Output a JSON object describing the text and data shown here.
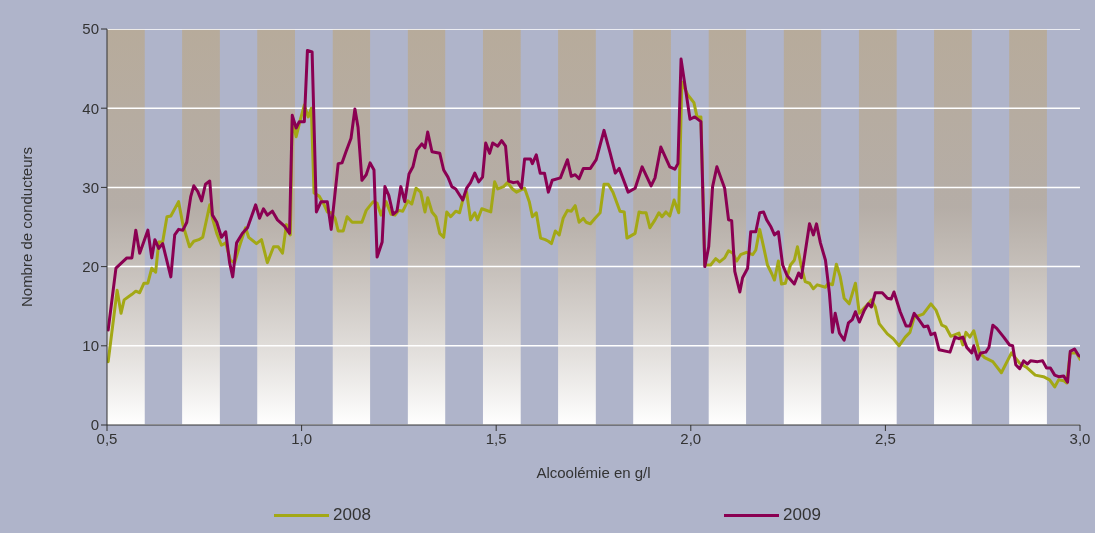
{
  "chart_data": {
    "type": "line",
    "xlabel": "Alcoolémie en g/l",
    "ylabel": "Nombre de  conducteurs",
    "xlim": [
      0.5,
      3.0
    ],
    "xticks": [
      {
        "value": 0.5,
        "label": "0,5"
      },
      {
        "value": 1.0,
        "label": "1,0"
      },
      {
        "value": 1.5,
        "label": "1,5"
      },
      {
        "value": 2.0,
        "label": "2,0"
      },
      {
        "value": 2.5,
        "label": "2,5"
      },
      {
        "value": 3.0,
        "label": "3,0"
      }
    ],
    "ylim": [
      0,
      50
    ],
    "yticks": [
      0,
      10,
      20,
      30,
      40,
      50
    ],
    "grid": "y",
    "legend": "bottom",
    "marker": "none",
    "line_style": "solid",
    "bands": [
      {
        "axis": "x",
        "from": 0.5,
        "to": 0.597,
        "color": "#b7ab9b"
      },
      {
        "axis": "x",
        "from": 0.693,
        "to": 0.79,
        "color": "#b7ab9b"
      },
      {
        "axis": "x",
        "from": 0.886,
        "to": 0.983,
        "color": "#b7ab9b"
      },
      {
        "axis": "x",
        "from": 1.08,
        "to": 1.176,
        "color": "#b7ab9b"
      },
      {
        "axis": "x",
        "from": 1.273,
        "to": 1.369,
        "color": "#b7ab9b"
      },
      {
        "axis": "x",
        "from": 1.466,
        "to": 1.563,
        "color": "#b7ab9b"
      },
      {
        "axis": "x",
        "from": 1.659,
        "to": 1.756,
        "color": "#b7ab9b"
      },
      {
        "axis": "x",
        "from": 1.852,
        "to": 1.949,
        "color": "#b7ab9b"
      },
      {
        "axis": "x",
        "from": 2.046,
        "to": 2.142,
        "color": "#b7ab9b"
      },
      {
        "axis": "x",
        "from": 2.239,
        "to": 2.335,
        "color": "#b7ab9b"
      },
      {
        "axis": "x",
        "from": 2.432,
        "to": 2.529,
        "color": "#b7ab9b"
      },
      {
        "axis": "x",
        "from": 2.625,
        "to": 2.722,
        "color": "#b7ab9b"
      },
      {
        "axis": "x",
        "from": 2.818,
        "to": 2.915,
        "color": "#b7ab9b"
      }
    ],
    "series": [
      {
        "name": "2008",
        "color": "#a3a815",
        "x": [
          0.503,
          0.526,
          0.536,
          0.544,
          0.564,
          0.574,
          0.584,
          0.595,
          0.605,
          0.615,
          0.625,
          0.633,
          0.643,
          0.654,
          0.664,
          0.684,
          0.695,
          0.712,
          0.723,
          0.736,
          0.746,
          0.764,
          0.771,
          0.782,
          0.794,
          0.805,
          0.817,
          0.828,
          0.84,
          0.856,
          0.864,
          0.884,
          0.897,
          0.912,
          0.928,
          0.94,
          0.951,
          0.961,
          0.971,
          0.976,
          0.986,
          0.997,
          1.007,
          1.017,
          1.025,
          1.032,
          1.045,
          1.058,
          1.066,
          1.076,
          1.086,
          1.094,
          1.107,
          1.117,
          1.13,
          1.14,
          1.155,
          1.166,
          1.184,
          1.194,
          1.204,
          1.217,
          1.23,
          1.24,
          1.25,
          1.26,
          1.273,
          1.283,
          1.294,
          1.306,
          1.317,
          1.324,
          1.335,
          1.345,
          1.355,
          1.365,
          1.373,
          1.383,
          1.396,
          1.406,
          1.414,
          1.424,
          1.434,
          1.445,
          1.452,
          1.463,
          1.486,
          1.496,
          1.504,
          1.519,
          1.529,
          1.542,
          1.552,
          1.573,
          1.585,
          1.593,
          1.603,
          1.614,
          1.626,
          1.634,
          1.642,
          1.652,
          1.662,
          1.672,
          1.683,
          1.693,
          1.703,
          1.713,
          1.724,
          1.731,
          1.742,
          1.754,
          1.767,
          1.777,
          1.788,
          1.8,
          1.818,
          1.829,
          1.836,
          1.857,
          1.867,
          1.875,
          1.885,
          1.895,
          1.908,
          1.918,
          1.926,
          1.936,
          1.946,
          1.957,
          1.969,
          1.977,
          1.992,
          2.008,
          2.016,
          2.026,
          2.036,
          2.051,
          2.064,
          2.074,
          2.087,
          2.097,
          2.108,
          2.118,
          2.128,
          2.143,
          2.159,
          2.167,
          2.177,
          2.187,
          2.197,
          2.208,
          2.215,
          2.225,
          2.233,
          2.243,
          2.256,
          2.266,
          2.274,
          2.284,
          2.294,
          2.305,
          2.315,
          2.325,
          2.346,
          2.353,
          2.364,
          2.374,
          2.384,
          2.394,
          2.407,
          2.423,
          2.433,
          2.446,
          2.456,
          2.464,
          2.474,
          2.484,
          2.505,
          2.52,
          2.535,
          2.551,
          2.563,
          2.574,
          2.597,
          2.617,
          2.63,
          2.645,
          2.655,
          2.668,
          2.689,
          2.699,
          2.707,
          2.717,
          2.727,
          2.742,
          2.755,
          2.776,
          2.798,
          2.824,
          2.845,
          2.862,
          2.885,
          2.906,
          2.922,
          2.935,
          2.945,
          2.958,
          2.966,
          2.975,
          2.991,
          3.0
        ],
        "values": [
          8.0,
          17.0,
          14.1,
          15.8,
          16.5,
          16.9,
          16.7,
          17.9,
          17.9,
          19.8,
          19.3,
          23.1,
          23.1,
          26.3,
          26.4,
          28.2,
          25.3,
          22.5,
          23.2,
          23.4,
          23.7,
          27.8,
          26.1,
          24.2,
          22.7,
          23.0,
          20.8,
          20.5,
          22.5,
          24.9,
          23.7,
          22.9,
          23.4,
          20.5,
          22.5,
          22.5,
          21.7,
          25.3,
          24.0,
          38.5,
          36.4,
          38.6,
          40.4,
          38.9,
          40.0,
          29.3,
          28.9,
          27.8,
          26.9,
          26.8,
          26.1,
          24.5,
          24.5,
          26.3,
          25.6,
          25.6,
          25.6,
          27.1,
          28.2,
          28.0,
          26.5,
          28.2,
          26.6,
          26.5,
          27.1,
          27.0,
          28.3,
          27.9,
          29.9,
          29.4,
          26.9,
          28.7,
          26.9,
          26.3,
          24.2,
          23.7,
          26.9,
          26.3,
          27.0,
          26.8,
          28.4,
          29.4,
          25.9,
          26.8,
          25.9,
          27.3,
          26.9,
          30.7,
          29.8,
          30.1,
          30.6,
          29.8,
          29.4,
          29.9,
          28.2,
          26.3,
          26.8,
          23.6,
          23.4,
          23.2,
          22.9,
          24.5,
          24.0,
          26.1,
          27.1,
          27.0,
          27.7,
          25.6,
          26.1,
          25.6,
          25.4,
          26.1,
          26.8,
          30.4,
          30.4,
          29.4,
          27.0,
          26.9,
          23.6,
          24.2,
          26.9,
          26.8,
          26.8,
          24.9,
          25.9,
          26.8,
          26.3,
          26.9,
          26.4,
          28.4,
          26.8,
          43.3,
          41.7,
          40.7,
          38.9,
          38.9,
          20.2,
          20.2,
          21.0,
          20.6,
          21.1,
          22.0,
          21.7,
          20.7,
          21.5,
          21.8,
          21.5,
          22.1,
          24.7,
          22.5,
          20.2,
          19.1,
          18.3,
          20.7,
          17.8,
          17.9,
          20.2,
          20.8,
          22.5,
          20.0,
          18.1,
          17.9,
          17.2,
          17.7,
          17.4,
          17.9,
          17.7,
          20.3,
          18.7,
          16.0,
          15.3,
          17.9,
          14.1,
          14.8,
          15.3,
          15.8,
          14.9,
          12.8,
          11.5,
          10.9,
          10.0,
          11.1,
          11.7,
          13.6,
          14.0,
          15.3,
          14.5,
          12.6,
          12.4,
          11.2,
          11.6,
          10.1,
          11.7,
          11.1,
          11.9,
          9.1,
          8.5,
          8.0,
          6.6,
          9.1,
          7.8,
          7.3,
          6.3,
          6.1,
          5.7,
          4.8,
          5.7,
          5.6,
          5.3,
          9.1,
          9.1,
          8.3
        ]
      },
      {
        "name": "2009",
        "color": "#8a0052",
        "x": [
          0.503,
          0.523,
          0.551,
          0.564,
          0.574,
          0.584,
          0.605,
          0.615,
          0.623,
          0.633,
          0.643,
          0.664,
          0.674,
          0.684,
          0.695,
          0.705,
          0.715,
          0.723,
          0.733,
          0.743,
          0.753,
          0.764,
          0.771,
          0.782,
          0.794,
          0.805,
          0.815,
          0.823,
          0.833,
          0.848,
          0.861,
          0.882,
          0.892,
          0.902,
          0.912,
          0.925,
          0.938,
          0.956,
          0.969,
          0.976,
          0.986,
          0.994,
          1.007,
          1.015,
          1.027,
          1.038,
          1.05,
          1.066,
          1.076,
          1.094,
          1.104,
          1.114,
          1.127,
          1.137,
          1.145,
          1.155,
          1.166,
          1.176,
          1.186,
          1.194,
          1.207,
          1.214,
          1.224,
          1.235,
          1.245,
          1.255,
          1.265,
          1.276,
          1.286,
          1.296,
          1.309,
          1.317,
          1.324,
          1.335,
          1.355,
          1.365,
          1.376,
          1.386,
          1.396,
          1.414,
          1.424,
          1.434,
          1.445,
          1.455,
          1.465,
          1.473,
          1.483,
          1.491,
          1.504,
          1.514,
          1.524,
          1.532,
          1.544,
          1.555,
          1.565,
          1.573,
          1.588,
          1.593,
          1.603,
          1.613,
          1.624,
          1.634,
          1.644,
          1.665,
          1.683,
          1.693,
          1.703,
          1.713,
          1.724,
          1.742,
          1.757,
          1.777,
          1.793,
          1.806,
          1.816,
          1.839,
          1.857,
          1.875,
          1.898,
          1.908,
          1.923,
          1.946,
          1.959,
          1.967,
          1.975,
          1.998,
          2.01,
          2.026,
          2.036,
          2.046,
          2.056,
          2.067,
          2.087,
          2.097,
          2.105,
          2.113,
          2.126,
          2.133,
          2.146,
          2.154,
          2.167,
          2.177,
          2.187,
          2.195,
          2.205,
          2.215,
          2.225,
          2.236,
          2.248,
          2.266,
          2.277,
          2.284,
          2.305,
          2.315,
          2.323,
          2.333,
          2.346,
          2.356,
          2.364,
          2.371,
          2.382,
          2.394,
          2.405,
          2.415,
          2.423,
          2.433,
          2.446,
          2.456,
          2.464,
          2.474,
          2.492,
          2.505,
          2.515,
          2.522,
          2.538,
          2.553,
          2.563,
          2.574,
          2.586,
          2.599,
          2.609,
          2.617,
          2.627,
          2.638,
          2.666,
          2.679,
          2.689,
          2.699,
          2.709,
          2.722,
          2.727,
          2.737,
          2.745,
          2.758,
          2.766,
          2.776,
          2.786,
          2.804,
          2.819,
          2.827,
          2.835,
          2.845,
          2.855,
          2.865,
          2.873,
          2.891,
          2.904,
          2.914,
          2.924,
          2.935,
          2.945,
          2.958,
          2.968,
          2.975,
          2.986,
          2.996,
          3.0
        ],
        "values": [
          12.0,
          19.8,
          21.1,
          21.1,
          24.6,
          21.7,
          24.6,
          21.1,
          23.4,
          22.3,
          22.9,
          18.7,
          24.0,
          24.7,
          24.6,
          25.6,
          28.8,
          30.2,
          29.5,
          28.3,
          30.4,
          30.8,
          26.5,
          25.6,
          23.7,
          24.4,
          20.5,
          18.7,
          23.0,
          24.2,
          24.9,
          27.8,
          26.1,
          27.3,
          26.5,
          27.0,
          25.9,
          25.1,
          24.2,
          39.1,
          37.5,
          38.3,
          38.3,
          47.3,
          47.1,
          26.9,
          28.2,
          28.2,
          24.7,
          33.0,
          33.1,
          34.5,
          36.2,
          39.9,
          37.6,
          30.9,
          31.6,
          33.1,
          32.2,
          21.2,
          23.1,
          30.1,
          29.0,
          26.6,
          27.0,
          30.1,
          28.2,
          31.7,
          32.6,
          34.7,
          35.5,
          35.0,
          37.0,
          34.5,
          34.3,
          32.2,
          31.3,
          30.1,
          29.8,
          28.4,
          29.9,
          30.6,
          31.8,
          30.7,
          31.3,
          35.6,
          34.3,
          35.6,
          35.2,
          35.9,
          35.2,
          30.8,
          30.6,
          30.7,
          29.9,
          33.6,
          33.6,
          33.0,
          34.1,
          31.8,
          31.8,
          29.4,
          30.9,
          31.2,
          33.5,
          31.4,
          31.6,
          31.1,
          32.4,
          32.4,
          33.5,
          37.2,
          34.3,
          31.8,
          32.4,
          29.4,
          29.9,
          32.6,
          30.2,
          31.2,
          35.1,
          32.6,
          32.3,
          33.0,
          46.2,
          38.6,
          38.9,
          38.3,
          20.0,
          22.5,
          30.1,
          32.6,
          29.9,
          25.9,
          25.8,
          19.4,
          16.8,
          18.6,
          19.8,
          24.4,
          24.4,
          26.8,
          26.9,
          25.9,
          25.1,
          24.0,
          24.4,
          20.2,
          18.8,
          17.8,
          19.2,
          18.6,
          25.4,
          24.0,
          25.4,
          23.0,
          20.8,
          16.7,
          11.7,
          14.1,
          11.6,
          10.7,
          12.9,
          13.3,
          14.3,
          13.0,
          14.5,
          15.3,
          14.9,
          16.7,
          16.7,
          16.0,
          15.9,
          16.8,
          14.3,
          12.5,
          12.5,
          14.1,
          13.3,
          12.4,
          12.5,
          11.4,
          11.6,
          9.5,
          9.2,
          11.1,
          10.9,
          11.1,
          9.8,
          9.1,
          10.0,
          8.3,
          9.1,
          9.2,
          9.8,
          12.6,
          12.2,
          11.1,
          10.1,
          10.0,
          7.6,
          7.1,
          8.1,
          7.7,
          8.1,
          8.0,
          8.1,
          7.2,
          7.2,
          6.3,
          6.1,
          6.2,
          5.4,
          9.3,
          9.6,
          8.8,
          8.7
        ]
      }
    ]
  }
}
